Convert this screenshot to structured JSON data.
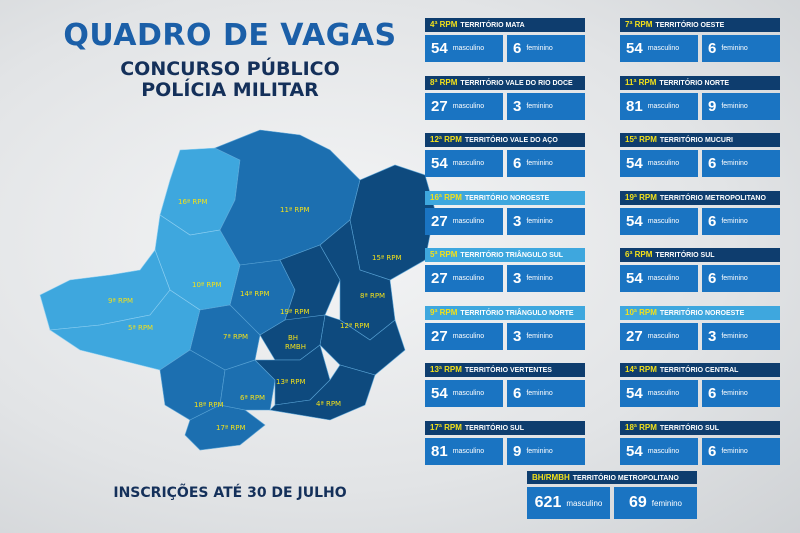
{
  "title": "QUADRO DE VAGAS",
  "subtitle_line1": "CONCURSO PÚBLICO",
  "subtitle_line2": "POLÍCIA MILITAR",
  "footer": "INSCRIÇÕES ATÉ 30 DE JULHO",
  "labels": {
    "male": "masculino",
    "female": "feminino"
  },
  "colors": {
    "dark": "#0e3d6e",
    "light": "#3ea7de",
    "value_box": "#1a74c2",
    "accent": "#f2e01a"
  },
  "map_labels": {
    "r16": "16ª RPM",
    "r11": "11ª RPM",
    "r10": "10ª RPM",
    "r9": "9ª RPM",
    "r5": "5ª RPM",
    "r14": "14ª RPM",
    "r15": "15ª RPM",
    "r8": "8ª RPM",
    "r19": "19ª RPM",
    "r12": "12ª RPM",
    "r7": "7ª RPM",
    "bh1": "BH",
    "bh2": "RMBH",
    "r13": "13ª RPM",
    "r6": "6ª RPM",
    "r18": "18ª RPM",
    "r4": "4ª RPM",
    "r17": "17ª RPM"
  },
  "cards": [
    {
      "rpm": "4ª RPM",
      "territory": "TERRITÓRIO MATA",
      "male": "54",
      "female": "6",
      "light": false
    },
    {
      "rpm": "7ª RPM",
      "territory": "TERRITÓRIO OESTE",
      "male": "54",
      "female": "6",
      "light": false
    },
    {
      "rpm": "8ª RPM",
      "territory": "TERRITÓRIO VALE DO RIO DOCE",
      "male": "27",
      "female": "3",
      "light": false
    },
    {
      "rpm": "11ª RPM",
      "territory": "TERRITÓRIO NORTE",
      "male": "81",
      "female": "9",
      "light": false
    },
    {
      "rpm": "12ª RPM",
      "territory": "TERRITÓRIO VALE DO AÇO",
      "male": "54",
      "female": "6",
      "light": false
    },
    {
      "rpm": "15ª RPM",
      "territory": "TERRITÓRIO MUCURI",
      "male": "54",
      "female": "6",
      "light": false
    },
    {
      "rpm": "16ª RPM",
      "territory": "TERRITÓRIO NOROESTE",
      "male": "27",
      "female": "3",
      "light": true
    },
    {
      "rpm": "19ª RPM",
      "territory": "TERRITÓRIO METROPOLITANO",
      "male": "54",
      "female": "6",
      "light": false
    },
    {
      "rpm": "5ª RPM",
      "territory": "TERRITÓRIO TRIÂNGULO SUL",
      "male": "27",
      "female": "3",
      "light": true
    },
    {
      "rpm": "6ª RPM",
      "territory": "TERRITÓRIO SUL",
      "male": "54",
      "female": "6",
      "light": false
    },
    {
      "rpm": "9ª RPM",
      "territory": "TERRITÓRIO TRIÂNGULO NORTE",
      "male": "27",
      "female": "3",
      "light": true
    },
    {
      "rpm": "10ª RPM",
      "territory": "TERRITÓRIO NOROESTE",
      "male": "27",
      "female": "3",
      "light": true
    },
    {
      "rpm": "13ª RPM",
      "territory": "TERRITÓRIO VERTENTES",
      "male": "54",
      "female": "6",
      "light": false
    },
    {
      "rpm": "14ª RPM",
      "territory": "TERRITÓRIO CENTRAL",
      "male": "54",
      "female": "6",
      "light": false
    },
    {
      "rpm": "17ª RPM",
      "territory": "TERRITÓRIO SUL",
      "male": "81",
      "female": "9",
      "light": false
    },
    {
      "rpm": "18ª RPM",
      "territory": "TERRITÓRIO SUL",
      "male": "54",
      "female": "6",
      "light": false
    }
  ],
  "bh": {
    "rpm": "BH/RMBH",
    "territory": "TERRITÓRIO METROPOLITANO",
    "male": "621",
    "female": "69"
  }
}
